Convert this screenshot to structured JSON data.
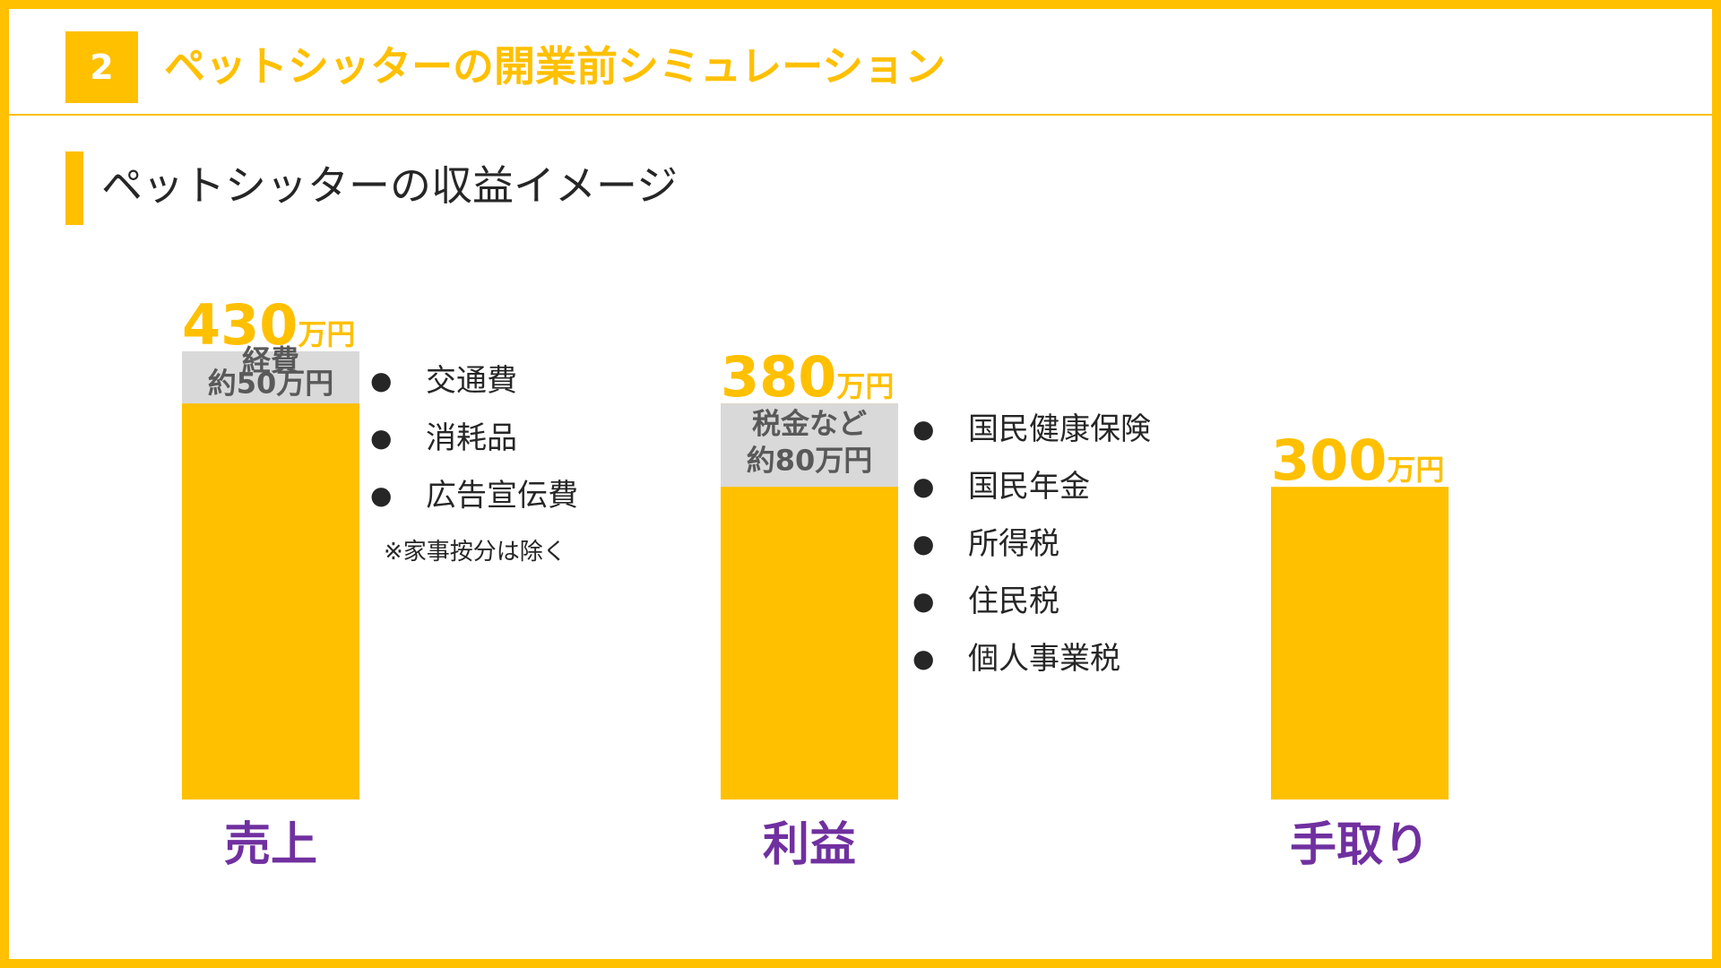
{
  "slide": {
    "number": "2",
    "title": "ペットシッターの開業前シミュレーション",
    "section_title": "ペットシッターの収益イメージ"
  },
  "colors": {
    "accent": "#FFC000",
    "deduction": "#D9D9D9",
    "category": "#7030A0",
    "text": "#262626"
  },
  "chart_data": {
    "type": "bar",
    "unit": "万円",
    "categories": [
      "売上",
      "利益",
      "手取り"
    ],
    "values": [
      430,
      380,
      300
    ],
    "deductions": [
      {
        "category": "売上",
        "label_line1": "経費",
        "label_line2": "約50万円",
        "value": 50
      },
      {
        "category": "利益",
        "label_line1": "税金など",
        "label_line2": "約80万円",
        "value": 80
      }
    ],
    "value_labels": [
      "430",
      "380",
      "300"
    ]
  },
  "expense_list": {
    "items": [
      "交通費",
      "消耗品",
      "広告宣伝費"
    ],
    "note": "※家事按分は除く"
  },
  "tax_list": {
    "items": [
      "国民健康保険",
      "国民年金",
      "所得税",
      "住民税",
      "個人事業税"
    ]
  },
  "bullet": "●"
}
